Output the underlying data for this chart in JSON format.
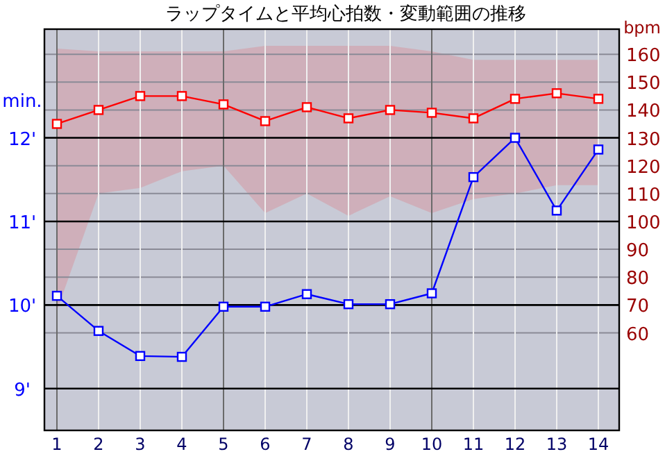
{
  "chart_data": {
    "type": "line",
    "title": "ラップタイムと平均心拍数・変動範囲の推移",
    "ylabel": "min.",
    "y2label": "bpm",
    "x": [
      1,
      2,
      3,
      4,
      5,
      6,
      7,
      8,
      9,
      10,
      11,
      12,
      13,
      14
    ],
    "xlim": [
      0.7,
      14.5
    ],
    "xticks": [
      1,
      2,
      3,
      4,
      5,
      6,
      7,
      8,
      9,
      10,
      11,
      12,
      13,
      14
    ],
    "ylim": [
      8.5,
      13.3
    ],
    "yticks": [
      {
        "value": 9,
        "label": "9'"
      },
      {
        "value": 10,
        "label": "10'"
      },
      {
        "value": 11,
        "label": "11'"
      },
      {
        "value": 12,
        "label": "12'"
      }
    ],
    "y2lim": [
      25,
      169
    ],
    "y2ticks": [
      60,
      70,
      80,
      90,
      100,
      110,
      120,
      130,
      140,
      150,
      160
    ],
    "grid": true,
    "marker": "square",
    "series": [
      {
        "color": "#0000ff",
        "values": [
          10.11,
          9.69,
          9.39,
          9.38,
          9.98,
          9.98,
          10.13,
          10.01,
          10.01,
          10.14,
          11.53,
          12.0,
          11.13,
          11.86
        ]
      },
      {
        "color": "#ff0000",
        "axis": "y2",
        "values": [
          135,
          140,
          145,
          145,
          142,
          136,
          141,
          137,
          140,
          139,
          137,
          144,
          146,
          144
        ],
        "lower": [
          68,
          110,
          112,
          118,
          120,
          103,
          110,
          102,
          109,
          103,
          108,
          110,
          113,
          113
        ],
        "upper": [
          162,
          161,
          161,
          161,
          161,
          163,
          163,
          163,
          163,
          161,
          158,
          158,
          158,
          158
        ]
      }
    ]
  }
}
